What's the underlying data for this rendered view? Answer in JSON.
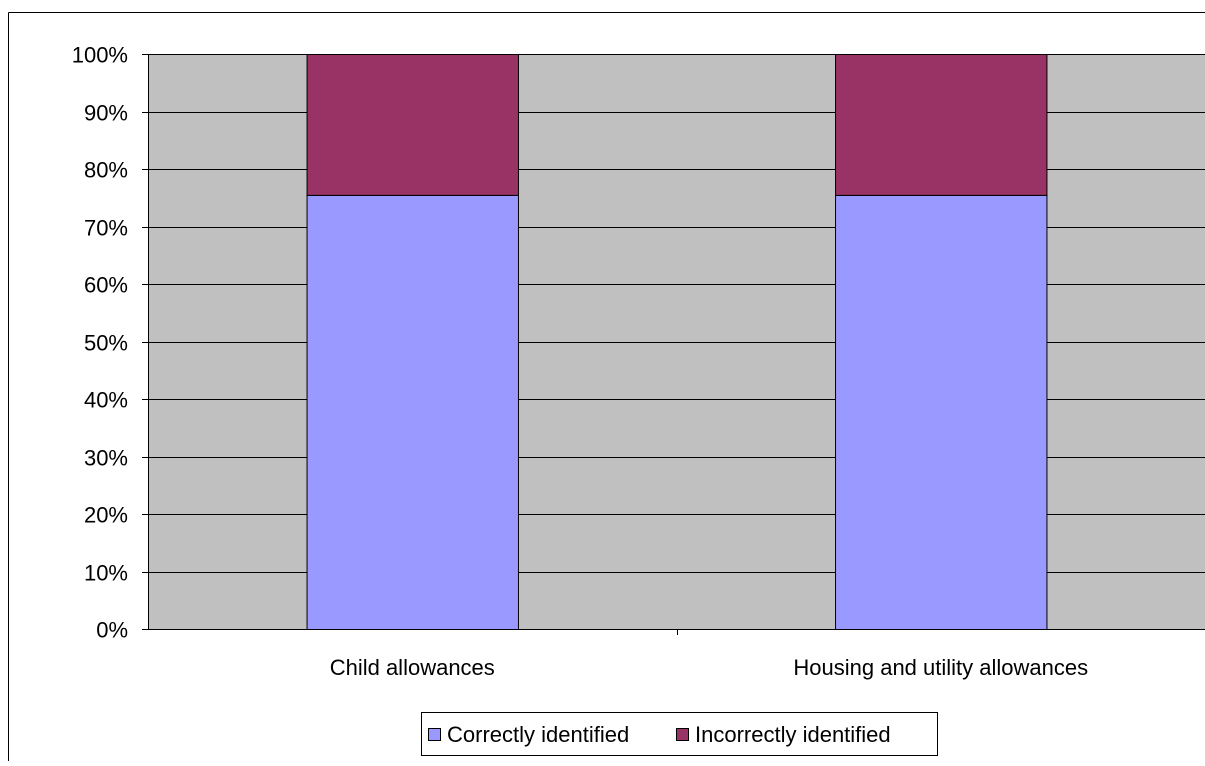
{
  "chart_data": {
    "type": "bar",
    "stacked": true,
    "percent": true,
    "categories": [
      "Child allowances",
      "Housing and utility allowances"
    ],
    "series": [
      {
        "name": "Correctly identified",
        "values": [
          75.5,
          75.5
        ],
        "color": "#9999ff"
      },
      {
        "name": "Incorrectly identified",
        "values": [
          24.5,
          24.5
        ],
        "color": "#993366"
      }
    ],
    "ylim": [
      0,
      100
    ],
    "yticks": [
      "0%",
      "10%",
      "20%",
      "30%",
      "40%",
      "50%",
      "60%",
      "70%",
      "80%",
      "90%",
      "100%"
    ],
    "grid": true,
    "legend": "bottom",
    "plot_background": "#c0c0c0"
  }
}
